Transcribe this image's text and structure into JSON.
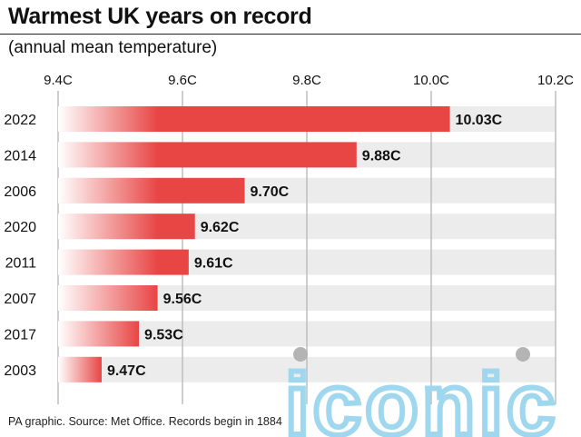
{
  "title": "Warmest UK years on record",
  "subtitle": "(annual mean temperature)",
  "source": "PA graphic. Source: Met Office. Records begin in 1884",
  "watermark": "iconic",
  "colors": {
    "bar": "#e84545",
    "bar_fade_start": "#ffffff",
    "track": "#ececec",
    "grid": "#bdbdbd",
    "text": "#111111",
    "watermark": "#9fd8ee",
    "watermark_dot": "#b4b4b4"
  },
  "chart_data": {
    "type": "bar",
    "orientation": "horizontal",
    "categories": [
      "2022",
      "2014",
      "2006",
      "2020",
      "2011",
      "2007",
      "2017",
      "2003"
    ],
    "values": [
      10.03,
      9.88,
      9.7,
      9.62,
      9.61,
      9.56,
      9.53,
      9.47
    ],
    "value_labels": [
      "10.03C",
      "9.88C",
      "9.70C",
      "9.62C",
      "9.61C",
      "9.56C",
      "9.53C",
      "9.47C"
    ],
    "xlim": [
      9.4,
      10.2
    ],
    "xticks": [
      9.4,
      9.6,
      9.8,
      10.0,
      10.2
    ],
    "xtick_labels": [
      "9.4C",
      "9.6C",
      "9.8C",
      "10.0C",
      "10.2C"
    ],
    "axis_position": "top",
    "grid": true,
    "legend": "none"
  }
}
